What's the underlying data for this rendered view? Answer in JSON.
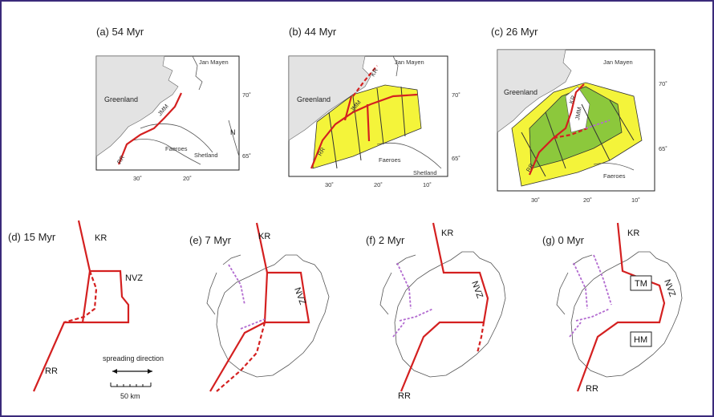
{
  "panels": [
    {
      "id": "a",
      "title": "(a) 54 Myr"
    },
    {
      "id": "b",
      "title": "(b) 44 Myr"
    },
    {
      "id": "c",
      "title": "(c) 26 Myr"
    },
    {
      "id": "d",
      "title": "(d) 15 Myr"
    },
    {
      "id": "e",
      "title": "(e) 7 Myr"
    },
    {
      "id": "f",
      "title": "(f) 2 Myr"
    },
    {
      "id": "g",
      "title": "(g) 0 Myr"
    }
  ],
  "places": {
    "greenland": "Greenland",
    "jan_mayen": "Jan Mayen",
    "faeroes": "Faeroes",
    "shetland": "Shetland",
    "n": "N"
  },
  "ridges": {
    "kr": "KR",
    "rr": "RR",
    "nvz": "NVZ",
    "jmm": "JMM"
  },
  "boxes": {
    "tm": "TM",
    "hm": "HM"
  },
  "lat": {
    "l70": "70˚",
    "l65": "65˚"
  },
  "lon": {
    "d30": "30˚",
    "d20": "20˚",
    "d10": "10˚"
  },
  "legend": {
    "spreading": "spreading direction",
    "scale": "50 km"
  },
  "colors": {
    "yellow": "#f4f43a",
    "green": "#8cc83c",
    "red": "#d42020",
    "purple": "#b26bd0",
    "land": "#e3e3e3"
  }
}
